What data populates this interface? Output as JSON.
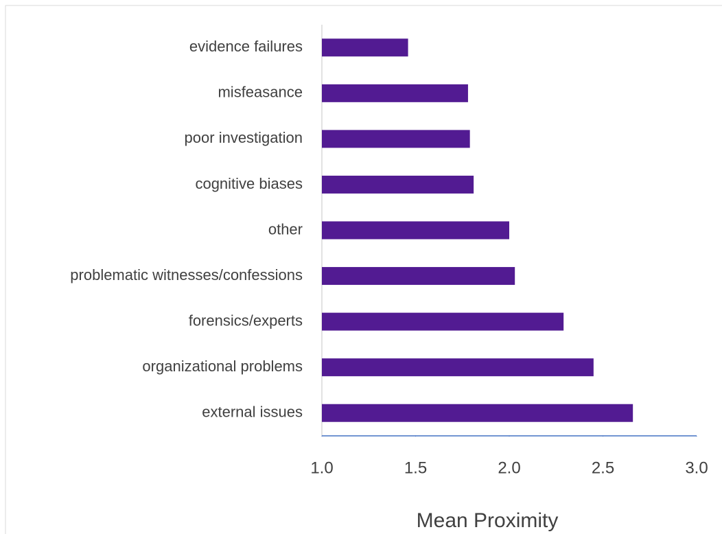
{
  "chart_data": {
    "type": "bar",
    "orientation": "horizontal",
    "x_label": "Mean Proximity",
    "categories": [
      "evidence failures",
      "misfeasance",
      "poor investigation",
      "cognitive biases",
      "other",
      "problematic witnesses/confessions",
      "forensics/experts",
      "organizational problems",
      "external issues"
    ],
    "values": [
      1.46,
      1.78,
      1.79,
      1.81,
      2.0,
      2.03,
      2.29,
      2.45,
      2.66
    ],
    "color": "#521b92",
    "xlim": [
      1,
      3
    ],
    "xticks": [
      {
        "value": 1,
        "label": "1.0"
      },
      {
        "value": 1.5,
        "label": "1.5"
      },
      {
        "value": 2,
        "label": "2.0"
      },
      {
        "value": 2.5,
        "label": "2.5"
      },
      {
        "value": 3,
        "label": "3.0"
      }
    ],
    "grid": false
  }
}
